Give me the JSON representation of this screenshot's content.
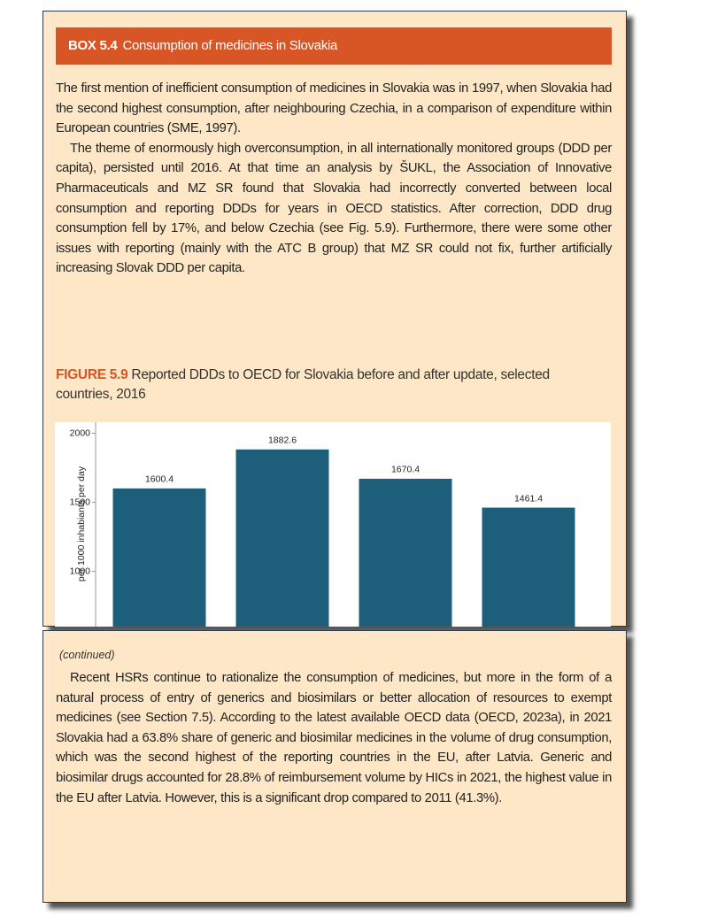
{
  "box": {
    "label": "BOX 5.4",
    "title": "Consumption of medicines in Slovakia",
    "paragraphs": [
      "The first mention of inefficient consumption of medicines in Slovakia was in 1997, when Slovakia had the second highest consumption, after neighbouring Czechia, in a comparison of expenditure within European countries (SME, 1997).",
      "The theme of enormously high overconsumption, in all internationally monitored groups (DDD per capita), persisted until 2016. At that time an analysis by ŠUKL, the Association of Innovative Pharmaceuticals and MZ SR found that Slovakia had incorrectly converted between local consumption and reporting DDDs for years in OECD statistics. After correction, DDD drug consumption fell by 17%, and below Czechia (see Fig. 5.9). Furthermore, there were some other issues with reporting (mainly with the ATC B group) that MZ SR could not fix, further artificially increasing Slovak DDD per capita."
    ],
    "figure": {
      "label": "FIGURE 5.9",
      "caption": "Reported DDDs to OECD for Slovakia before and after update, selected countries, 2016"
    }
  },
  "chart_data": {
    "type": "bar",
    "y_label": "per 1000 inhabiants per day",
    "values": [
      1600.4,
      1882.6,
      1670.4,
      1461.4
    ],
    "color": "#1d5f7a",
    "ylim": [
      600,
      2080
    ],
    "yticks": [
      1000,
      1500,
      2000
    ]
  },
  "continued": {
    "label": "(continued)",
    "paragraph": "Recent HSRs continue to rationalize the consumption of medicines, but more in the form of a natural process of entry of generics and biosimilars or better allocation of resources to exempt medicines (see Section 7.5). According to the latest available OECD data (OECD, 2023a), in 2021 Slovakia had a 63.8% share of generic and biosimilar medicines in the volume of drug consumption, which was the second highest of the reporting countries in the EU, after Latvia. Generic and biosimilar drugs accounted for 28.8% of reimbursement volume by HICs in 2021, the highest value in the EU after Latvia. However, this is a significant drop compared to 2011 (41.3%)."
  }
}
